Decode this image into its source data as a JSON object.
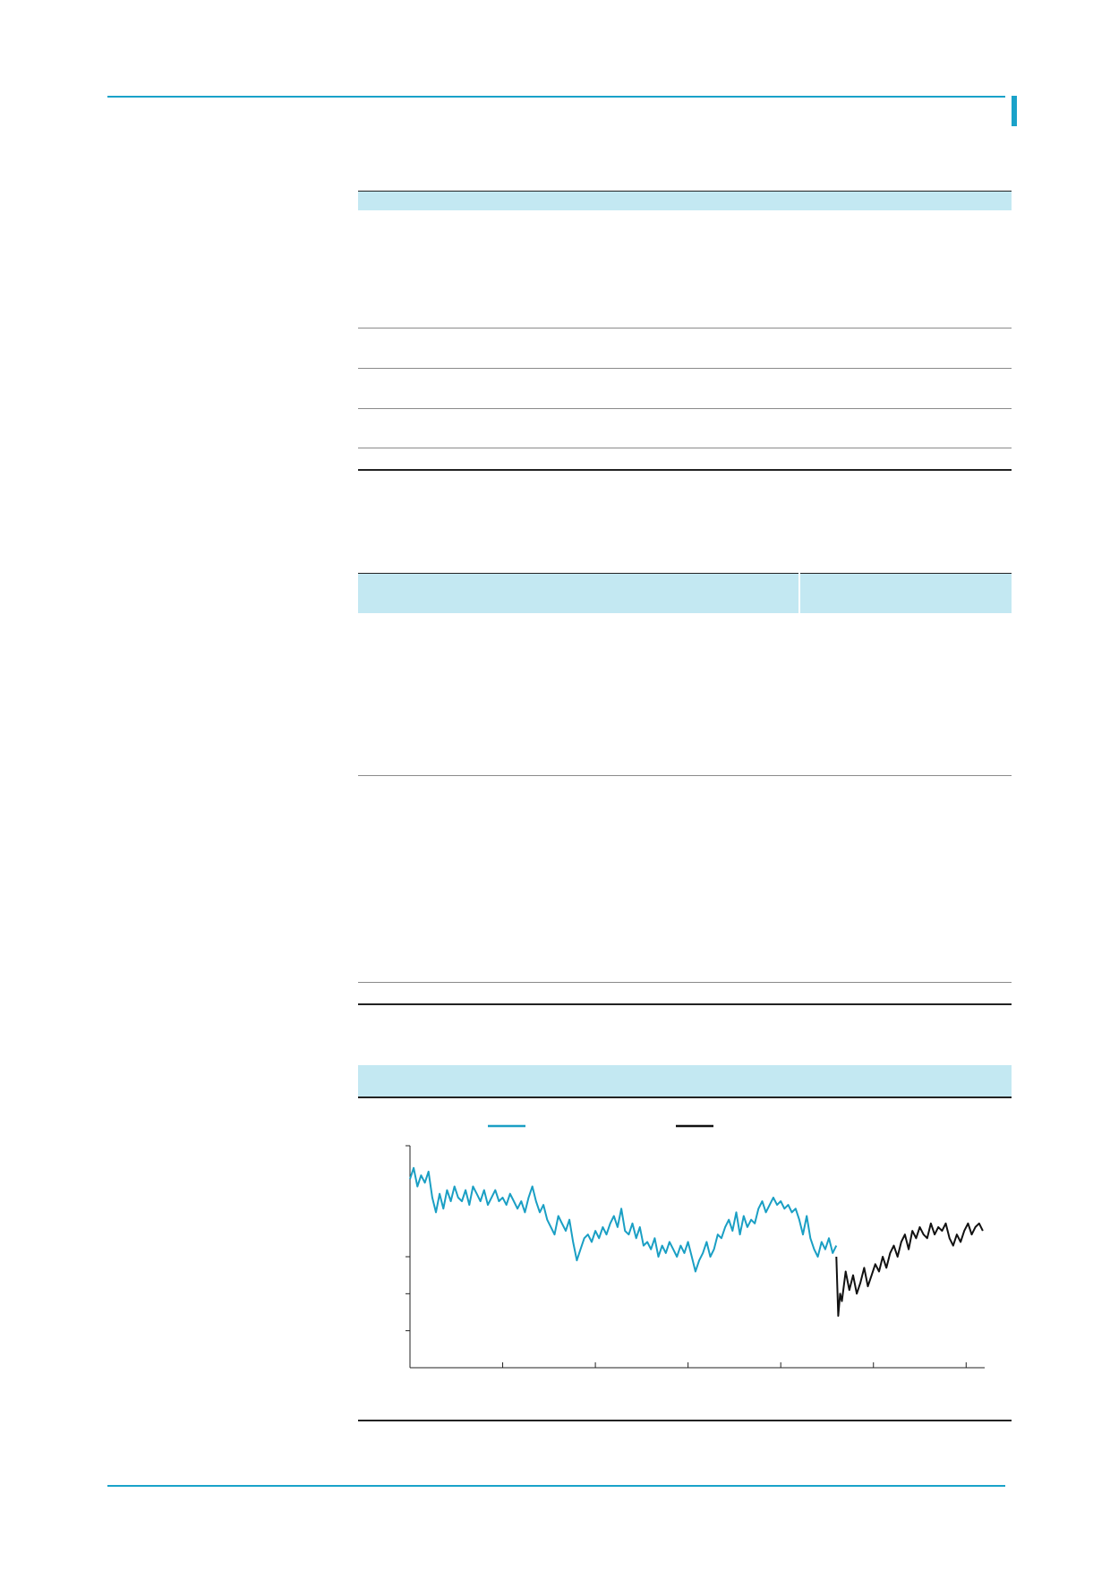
{
  "document": {
    "table1": {
      "header": "",
      "rows": [
        "",
        "",
        "",
        ""
      ]
    },
    "table2": {
      "header_left": "",
      "header_right": "",
      "rows": [
        "",
        ""
      ]
    }
  },
  "chart_data": {
    "type": "line",
    "title": "",
    "xlabel": "",
    "ylabel": "",
    "ylim": [
      0,
      6
    ],
    "xlim": [
      0,
      6.2
    ],
    "x_tick_positions": [
      0,
      1,
      2,
      3,
      4,
      5,
      6
    ],
    "y_tick_positions": [
      1,
      2,
      3
    ],
    "grid": false,
    "legend": {
      "placement": "top"
    },
    "series": [
      {
        "color": "#1a9fc4",
        "x": [
          0.0,
          0.04,
          0.08,
          0.12,
          0.16,
          0.2,
          0.24,
          0.28,
          0.32,
          0.36,
          0.4,
          0.44,
          0.48,
          0.52,
          0.56,
          0.6,
          0.64,
          0.68,
          0.72,
          0.76,
          0.8,
          0.84,
          0.88,
          0.92,
          0.96,
          1.0,
          1.04,
          1.08,
          1.12,
          1.16,
          1.2,
          1.24,
          1.28,
          1.32,
          1.36,
          1.4,
          1.44,
          1.48,
          1.52,
          1.56,
          1.6,
          1.64,
          1.68,
          1.72,
          1.76,
          1.8,
          1.84,
          1.88,
          1.92,
          1.96,
          2.0,
          2.04,
          2.08,
          2.12,
          2.16,
          2.2,
          2.24,
          2.28,
          2.32,
          2.36,
          2.4,
          2.44,
          2.48,
          2.52,
          2.56,
          2.6,
          2.64,
          2.68,
          2.72,
          2.76,
          2.8,
          2.84,
          2.88,
          2.92,
          2.96,
          3.0,
          3.04,
          3.08,
          3.12,
          3.16,
          3.2,
          3.24,
          3.28,
          3.32,
          3.36,
          3.4,
          3.44,
          3.48,
          3.52,
          3.56,
          3.6,
          3.64,
          3.68,
          3.72,
          3.76,
          3.8,
          3.84,
          3.88,
          3.92,
          3.96,
          4.0,
          4.04,
          4.08,
          4.12,
          4.16,
          4.2,
          4.24,
          4.28,
          4.32,
          4.36,
          4.4,
          4.44,
          4.48,
          4.52,
          4.56,
          4.6
        ],
        "y": [
          5.1,
          5.4,
          4.9,
          5.2,
          5.0,
          5.3,
          4.6,
          4.2,
          4.7,
          4.3,
          4.8,
          4.5,
          4.9,
          4.6,
          4.5,
          4.8,
          4.4,
          4.9,
          4.7,
          4.5,
          4.8,
          4.4,
          4.6,
          4.8,
          4.5,
          4.6,
          4.4,
          4.7,
          4.5,
          4.3,
          4.5,
          4.2,
          4.6,
          4.9,
          4.5,
          4.2,
          4.4,
          4.0,
          3.8,
          3.6,
          4.1,
          3.9,
          3.7,
          4.0,
          3.4,
          2.9,
          3.2,
          3.5,
          3.6,
          3.4,
          3.7,
          3.5,
          3.8,
          3.6,
          3.9,
          4.1,
          3.8,
          4.3,
          3.7,
          3.6,
          3.9,
          3.5,
          3.8,
          3.3,
          3.4,
          3.2,
          3.5,
          3.0,
          3.3,
          3.1,
          3.4,
          3.2,
          3.0,
          3.3,
          3.1,
          3.4,
          3.0,
          2.6,
          2.9,
          3.1,
          3.4,
          3.0,
          3.2,
          3.6,
          3.5,
          3.8,
          4.0,
          3.7,
          4.2,
          3.6,
          4.1,
          3.8,
          4.0,
          3.9,
          4.3,
          4.5,
          4.2,
          4.4,
          4.6,
          4.4,
          4.5,
          4.3,
          4.4,
          4.2,
          4.3,
          4.0,
          3.6,
          4.1,
          3.5,
          3.2,
          3.0,
          3.4,
          3.2,
          3.5,
          3.1,
          3.3
        ]
      },
      {
        "color": "#111111",
        "x": [
          4.6,
          4.62,
          4.64,
          4.66,
          4.7,
          4.74,
          4.78,
          4.82,
          4.86,
          4.9,
          4.94,
          4.98,
          5.02,
          5.06,
          5.1,
          5.14,
          5.18,
          5.22,
          5.26,
          5.3,
          5.34,
          5.38,
          5.42,
          5.46,
          5.5,
          5.54,
          5.58,
          5.62,
          5.66,
          5.7,
          5.74,
          5.78,
          5.82,
          5.86,
          5.9,
          5.94,
          5.98,
          6.02,
          6.06,
          6.1,
          6.14,
          6.18
        ],
        "y": [
          3.0,
          1.4,
          2.0,
          1.8,
          2.6,
          2.1,
          2.5,
          2.0,
          2.3,
          2.7,
          2.2,
          2.5,
          2.8,
          2.6,
          3.0,
          2.7,
          3.1,
          3.3,
          3.0,
          3.4,
          3.6,
          3.2,
          3.7,
          3.5,
          3.8,
          3.6,
          3.5,
          3.9,
          3.6,
          3.8,
          3.7,
          3.9,
          3.5,
          3.3,
          3.6,
          3.4,
          3.7,
          3.9,
          3.6,
          3.8,
          3.9,
          3.7
        ]
      }
    ]
  }
}
